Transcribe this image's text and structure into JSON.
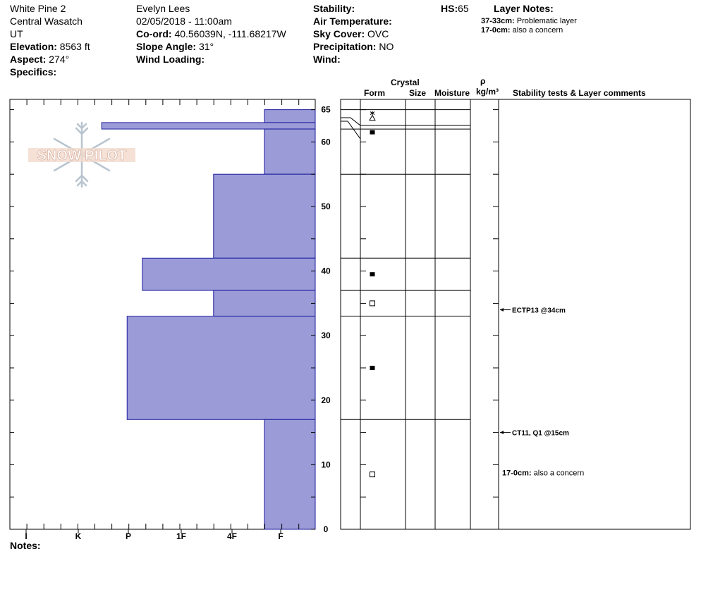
{
  "header": {
    "site": "White Pine 2",
    "range": "Central Wasatch",
    "state": "UT",
    "elevation_label": "Elevation:",
    "elevation_value": "8563 ft",
    "aspect_label": "Aspect:",
    "aspect_value": "274°",
    "specifics_label": "Specifics:",
    "observer": "Evelyn Lees",
    "datetime": "02/05/2018 - 11:00am",
    "coord_label": "Co-ord:",
    "coord_value": "40.56039N, -111.68217W",
    "slope_label": "Slope Angle:",
    "slope_value": "31°",
    "wind_loading_label": "Wind Loading:",
    "stability_label": "Stability:",
    "air_temp_label": "Air Temperature:",
    "sky_label": "Sky Cover:",
    "sky_value": "OVC",
    "precip_label": "Precipitation:",
    "precip_value": "NO",
    "wind_label": "Wind:",
    "hs_label": "HS:",
    "hs_value": "65",
    "layer_notes_label": "Layer Notes:",
    "layer_notes": [
      {
        "range": "37-33cm:",
        "text": "Problematic layer"
      },
      {
        "range": "17-0cm:",
        "text": "also a concern"
      }
    ]
  },
  "columns": {
    "crystal": "Crystal",
    "form": "Form",
    "size": "Size",
    "moisture": "Moisture",
    "rho": "ρ",
    "density_unit": "kg/m³",
    "stability": "Stability tests & Layer comments"
  },
  "logo_text": "SNOW PILOT",
  "notes_label": "Notes:",
  "colors": {
    "bar": "#9b9bd8",
    "bar_edge": "#1c1c9c"
  },
  "chart_data": {
    "type": "bar",
    "orientation": "horizontal",
    "ylabel": "",
    "ylim": [
      0,
      65
    ],
    "y_ticks": [
      0,
      10,
      20,
      30,
      40,
      50,
      60,
      65
    ],
    "x_categories": [
      "I",
      "K",
      "P",
      "1F",
      "4F",
      "F"
    ],
    "xlim_hardness": [
      0,
      6
    ],
    "layers": [
      {
        "top": 65,
        "bottom": 63,
        "hardness": 1.0
      },
      {
        "top": 63,
        "bottom": 62,
        "hardness": 4.2
      },
      {
        "top": 62,
        "bottom": 55,
        "hardness": 1.0
      },
      {
        "top": 55,
        "bottom": 42,
        "hardness": 2.0
      },
      {
        "top": 42,
        "bottom": 37,
        "hardness": 3.4
      },
      {
        "top": 37,
        "bottom": 33,
        "hardness": 2.0
      },
      {
        "top": 33,
        "bottom": 17,
        "hardness": 3.7
      },
      {
        "top": 17,
        "bottom": 0,
        "hardness": 1.0
      }
    ],
    "crystal_forms": [
      {
        "height": 63.8,
        "symbol": "star-triangle"
      },
      {
        "height": 61.5,
        "symbol": "filled-square"
      },
      {
        "height": 39.5,
        "symbol": "filled-square"
      },
      {
        "height": 35,
        "symbol": "open-square"
      },
      {
        "height": 25,
        "symbol": "filled-square"
      },
      {
        "height": 8.5,
        "symbol": "open-square"
      }
    ],
    "stability_tests": [
      {
        "height": 34,
        "text": "ECTP13 @34cm"
      },
      {
        "height": 15,
        "text": "CT11, Q1 @15cm"
      }
    ],
    "layer_comments": [
      {
        "height": 8,
        "range": "17-0cm:",
        "text": "also a concern"
      }
    ]
  }
}
